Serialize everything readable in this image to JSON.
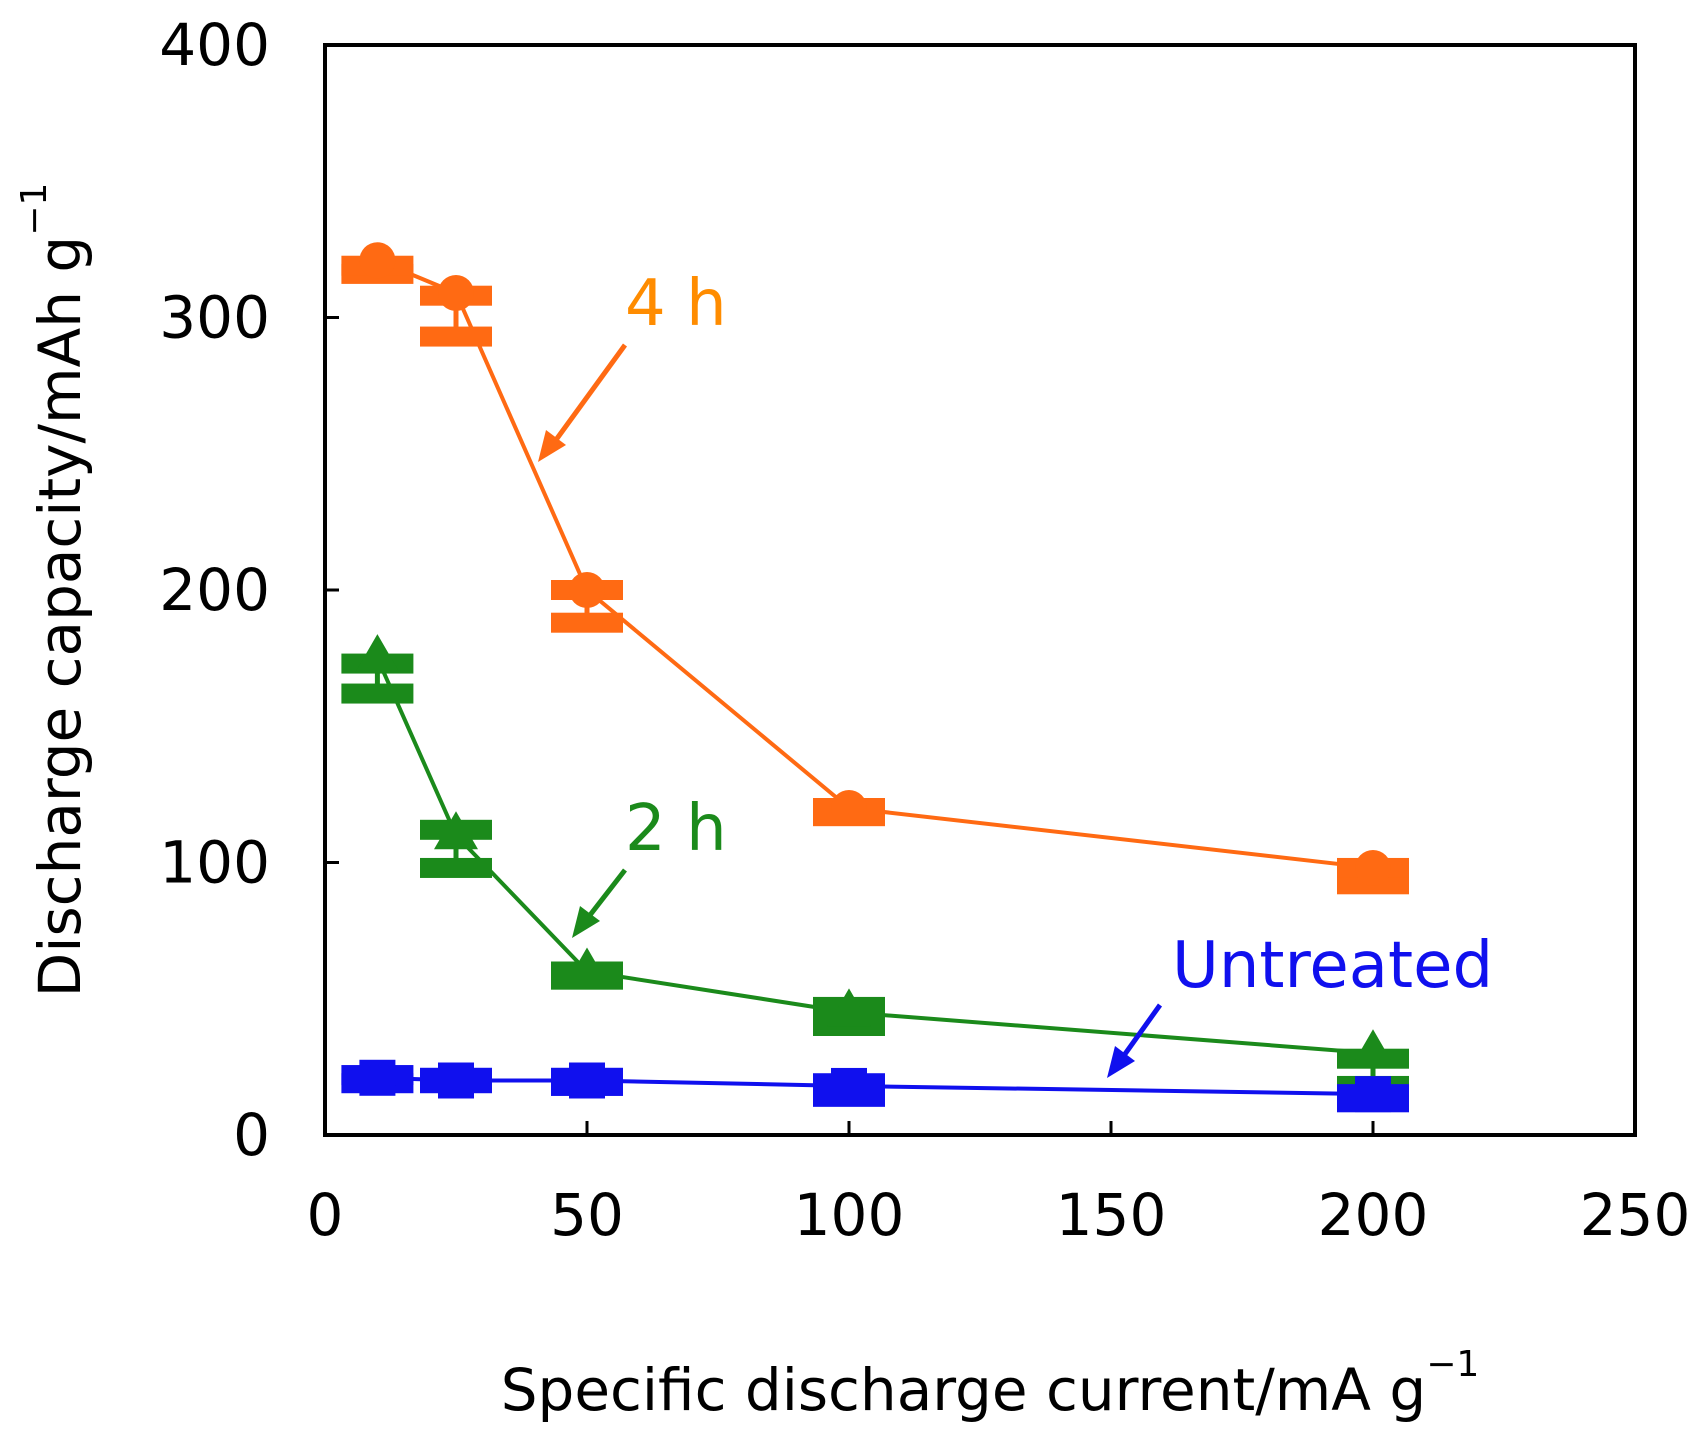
{
  "chart_data": {
    "type": "line",
    "title": "",
    "xlabel": "Specific discharge current/mA g",
    "xlabel_sup": "−1",
    "ylabel": "Discharge capacity/mAh g",
    "ylabel_sup": "−1",
    "xlim": [
      0,
      250
    ],
    "ylim": [
      0,
      400
    ],
    "xticks": [
      0,
      50,
      100,
      150,
      200,
      250
    ],
    "yticks": [
      0,
      100,
      200,
      300,
      400
    ],
    "grid": false,
    "series": [
      {
        "name": "4 h",
        "color": "#ff6a13",
        "marker": "circle",
        "x": [
          10,
          25,
          50,
          100,
          200
        ],
        "y": [
          321,
          309,
          200,
          120,
          98
        ],
        "err_low": [
          316,
          293,
          188,
          117,
          92
        ],
        "err_high": [
          319,
          308,
          200,
          120,
          98
        ]
      },
      {
        "name": "2 h",
        "color": "#1b8a1b",
        "marker": "triangle",
        "x": [
          10,
          25,
          50,
          100,
          200
        ],
        "y": [
          175,
          110,
          60,
          45,
          30
        ],
        "err_low": [
          162,
          98,
          57,
          40,
          18
        ],
        "err_high": [
          173,
          112,
          60,
          47,
          28
        ]
      },
      {
        "name": "Untreated",
        "color": "#1010ee",
        "marker": "square",
        "x": [
          10,
          25,
          50,
          100,
          200
        ],
        "y": [
          21,
          20,
          20,
          18,
          15
        ],
        "err_low": [
          19,
          19,
          18,
          14,
          12
        ],
        "err_high": [
          22,
          21,
          21,
          19,
          15
        ]
      }
    ],
    "annotations": [
      {
        "text": "4 h",
        "color": "#ff8c00",
        "series": "4 h"
      },
      {
        "text": "2 h",
        "color": "#1b8a1b",
        "series": "2 h"
      },
      {
        "text": "Untreated",
        "color": "#1010ee",
        "series": "Untreated"
      }
    ]
  }
}
